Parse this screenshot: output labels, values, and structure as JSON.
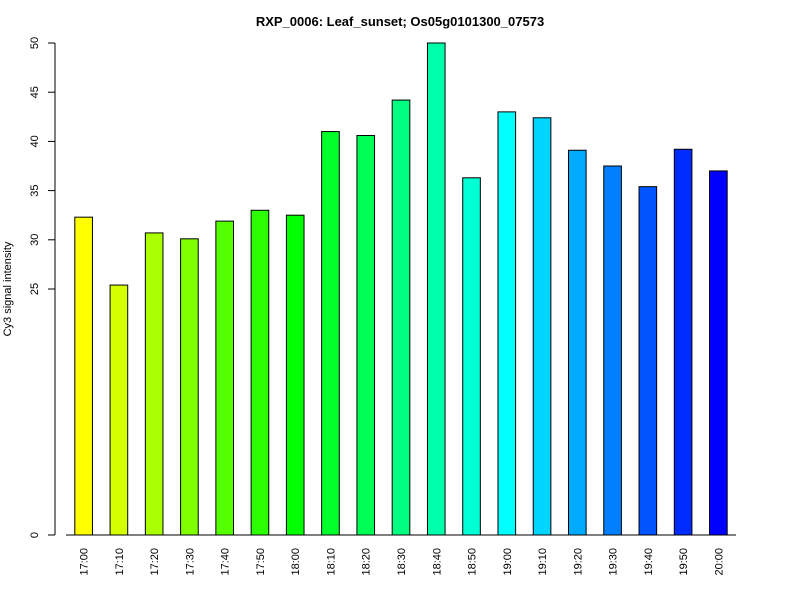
{
  "chart_data": {
    "type": "bar",
    "title": "RXP_0006: Leaf_sunset; Os05g0101300_07573",
    "ylabel": "Cy3 signal intensity",
    "xlabel": "",
    "categories": [
      "17:00",
      "17:10",
      "17:20",
      "17:30",
      "17:40",
      "17:50",
      "18:00",
      "18:10",
      "18:20",
      "18:30",
      "18:40",
      "18:50",
      "19:00",
      "19:10",
      "19:20",
      "19:30",
      "19:40",
      "19:50",
      "20:00"
    ],
    "values": [
      32.3,
      25.4,
      30.7,
      30.1,
      31.9,
      33.0,
      32.5,
      41.0,
      40.6,
      44.2,
      50.0,
      36.3,
      43.0,
      42.4,
      39.1,
      37.5,
      35.4,
      39.2,
      37.0
    ],
    "colors": [
      "#FFFF00",
      "#D4FF00",
      "#AAFF00",
      "#80FF00",
      "#55FF00",
      "#2BFF00",
      "#00FF00",
      "#00FF2B",
      "#00FF55",
      "#00FF80",
      "#00FFAA",
      "#00FFD4",
      "#00FFFF",
      "#00D4FF",
      "#00AAFF",
      "#0080FF",
      "#0055FF",
      "#002BFF",
      "#0000FF"
    ],
    "yticks": [
      0,
      25,
      30,
      35,
      40,
      45,
      50
    ],
    "ylim": [
      0,
      50
    ],
    "grid": false
  }
}
